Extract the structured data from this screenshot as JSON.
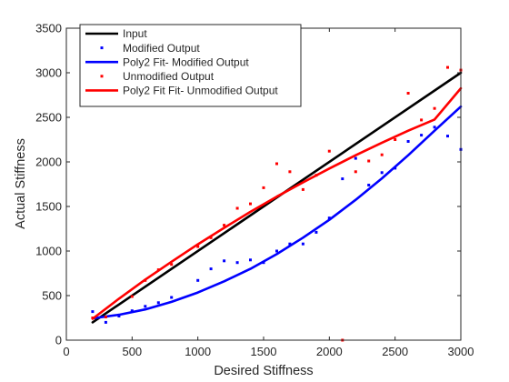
{
  "chart_data": {
    "type": "scatter",
    "title": "",
    "xlabel": "Desired Stiffness",
    "ylabel": "Actual Stiffness",
    "xlim": [
      0,
      3000
    ],
    "ylim": [
      0,
      3500
    ],
    "xticks": [
      0,
      500,
      1000,
      1500,
      2000,
      2500,
      3000
    ],
    "yticks": [
      0,
      500,
      1000,
      1500,
      2000,
      2500,
      3000,
      3500
    ],
    "grid": false,
    "legend_position": "top-left",
    "series": [
      {
        "name": "Input",
        "kind": "line",
        "color": "#000000",
        "x": [
          200,
          3000
        ],
        "y": [
          200,
          3000
        ]
      },
      {
        "name": "Modified Output",
        "kind": "points",
        "color": "#0000ff",
        "x": [
          200,
          300,
          400,
          500,
          600,
          700,
          800,
          1000,
          1100,
          1200,
          1300,
          1400,
          1500,
          1600,
          1700,
          1800,
          1900,
          2000,
          2100,
          2200,
          2300,
          2400,
          2500,
          2600,
          2700,
          2800,
          2900,
          3000
        ],
        "y": [
          320,
          200,
          270,
          330,
          380,
          420,
          480,
          670,
          800,
          890,
          870,
          900,
          870,
          1000,
          1080,
          1080,
          1210,
          1370,
          1810,
          2040,
          1740,
          1880,
          1930,
          2230,
          2300,
          2390,
          2290,
          2140
        ]
      },
      {
        "name": "Poly2 Fit- Modified Output",
        "kind": "line",
        "color": "#0000ff",
        "x": [
          200,
          400,
          600,
          800,
          1000,
          1200,
          1400,
          1600,
          1800,
          2000,
          2200,
          2400,
          2600,
          2800,
          3000
        ],
        "y": [
          245,
          285,
          345,
          430,
          535,
          660,
          800,
          965,
          1150,
          1350,
          1575,
          1815,
          2075,
          2350,
          2620
        ]
      },
      {
        "name": "Unmodified Output",
        "kind": "points",
        "color": "#ff0000",
        "x": [
          200,
          300,
          500,
          600,
          700,
          800,
          1000,
          1100,
          1200,
          1300,
          1400,
          1500,
          1600,
          1700,
          1800,
          1900,
          2000,
          2100,
          2200,
          2300,
          2400,
          2500,
          2600,
          2700,
          2800,
          2900,
          3000
        ],
        "y": [
          250,
          260,
          490,
          670,
          790,
          850,
          1050,
          1150,
          1290,
          1480,
          1530,
          1710,
          1980,
          1890,
          1690,
          1850,
          2120,
          0,
          1890,
          2010,
          2080,
          2250,
          2770,
          2470,
          2600,
          3060,
          3030
        ]
      },
      {
        "name": "Poly2 Fit Fit- Unmodified Output",
        "kind": "line",
        "color": "#ff0000",
        "x": [
          200,
          400,
          600,
          800,
          1000,
          1200,
          1400,
          1600,
          1800,
          2000,
          2200,
          2400,
          2600,
          2800,
          3000
        ],
        "y": [
          240,
          465,
          680,
          880,
          1075,
          1260,
          1440,
          1610,
          1770,
          1925,
          2075,
          2215,
          2350,
          2475,
          2825
        ]
      }
    ]
  }
}
